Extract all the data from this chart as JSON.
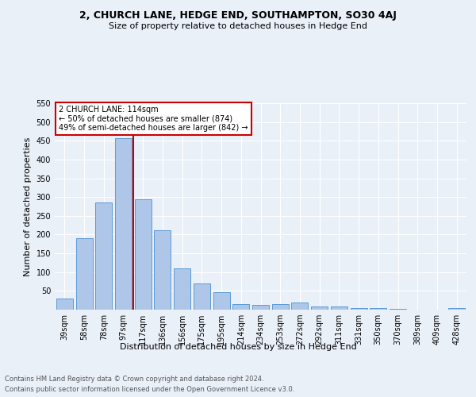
{
  "title1": "2, CHURCH LANE, HEDGE END, SOUTHAMPTON, SO30 4AJ",
  "title2": "Size of property relative to detached houses in Hedge End",
  "xlabel": "Distribution of detached houses by size in Hedge End",
  "ylabel": "Number of detached properties",
  "categories": [
    "39sqm",
    "58sqm",
    "78sqm",
    "97sqm",
    "117sqm",
    "136sqm",
    "156sqm",
    "175sqm",
    "195sqm",
    "214sqm",
    "234sqm",
    "253sqm",
    "272sqm",
    "292sqm",
    "311sqm",
    "331sqm",
    "350sqm",
    "370sqm",
    "389sqm",
    "409sqm",
    "428sqm"
  ],
  "values": [
    30,
    190,
    285,
    457,
    293,
    211,
    110,
    70,
    46,
    14,
    13,
    14,
    20,
    9,
    9,
    5,
    5,
    3,
    0,
    0,
    5
  ],
  "bar_color": "#aec6e8",
  "bar_edge_color": "#5b9bd5",
  "vline_x_index": 4,
  "vline_color": "#cc0000",
  "annotation_text": "2 CHURCH LANE: 114sqm\n← 50% of detached houses are smaller (874)\n49% of semi-detached houses are larger (842) →",
  "annotation_box_facecolor": "#ffffff",
  "annotation_box_edgecolor": "#cc0000",
  "ylim": [
    0,
    550
  ],
  "yticks": [
    0,
    50,
    100,
    150,
    200,
    250,
    300,
    350,
    400,
    450,
    500,
    550
  ],
  "footer1": "Contains HM Land Registry data © Crown copyright and database right 2024.",
  "footer2": "Contains public sector information licensed under the Open Government Licence v3.0.",
  "bg_color": "#eaf0f8",
  "plot_bg_color": "#eaf0f8",
  "grid_color": "#ffffff",
  "title1_fontsize": 9,
  "title2_fontsize": 8,
  "ylabel_fontsize": 8,
  "xlabel_fontsize": 8,
  "tick_fontsize": 7,
  "ann_fontsize": 7,
  "footer_fontsize": 6
}
